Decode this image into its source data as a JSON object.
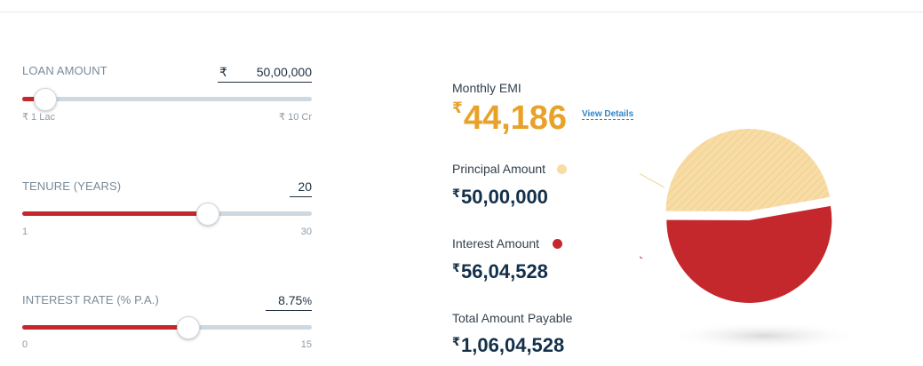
{
  "loan_amount": {
    "label": "LOAN AMOUNT",
    "currency": "₹",
    "value": "50,00,000",
    "min_label": "₹ 1 Lac",
    "max_label": "₹ 10 Cr",
    "fill_fraction": 0.08
  },
  "tenure": {
    "label": "TENURE (YEARS)",
    "value": "20",
    "min_label": "1",
    "max_label": "30",
    "fill_fraction": 0.64
  },
  "interest_rate": {
    "label": "INTEREST RATE (% P.A.)",
    "value": "8.75",
    "unit": "%",
    "min_label": "0",
    "max_label": "15",
    "fill_fraction": 0.575
  },
  "results": {
    "emi_label": "Monthly EMI",
    "currency": "₹",
    "emi_value": "44,186",
    "view_details": "View Details",
    "principal_label": "Principal Amount",
    "principal_value": "50,00,000",
    "interest_label": "Interest Amount",
    "interest_value": "56,04,528",
    "total_label": "Total Amount Payable",
    "total_value": "1,06,04,528"
  },
  "pie": {
    "principal_share": 0.4715,
    "interest_share": 0.5285
  },
  "colors": {
    "accent_red": "#c5282c",
    "principal_color": "#f8dca6",
    "interest_color": "#c5282c",
    "emi_color": "#e8a22a",
    "link_color": "#2f86c8"
  }
}
